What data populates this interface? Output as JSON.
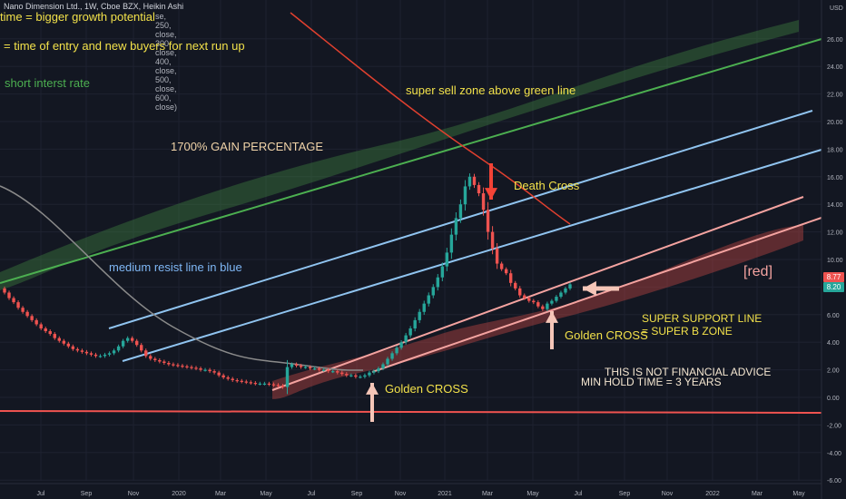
{
  "header": {
    "symbol_info": "Nano Dimension Ltd., 1W, Cboe BZX, Heikin Ashi",
    "study_params": "se, 250, close, 300, close, 400, close, 500, close, 600, close)"
  },
  "annotations": {
    "bigger_growth": "time = bigger growth potential",
    "time_entry": "= time of entry and new buyers for next run up",
    "short_interest": "short interst rate",
    "sell_zone": "super sell zone above green line",
    "gain": "1700% GAIN PERCENTAGE",
    "death_cross": "Death Cross",
    "medium_resist": "medium resist line in blue",
    "red_label": "[red]",
    "super_support_1": "SUPER SUPPORT LINE",
    "super_support_2": "= SUPER B ZONE",
    "golden_cross_1": "Golden CROSS",
    "golden_cross_2": "Golden CROSS",
    "not_advice": "THIS IS NOT FINANCIAL ADVICE",
    "min_hold": "MIN HOLD TIME = 3 YEARS"
  },
  "price_tags": {
    "tag1": "8.77",
    "tag2": "8.20",
    "tag1_color": "#ef5350",
    "tag2_color": "#26a69a"
  },
  "chart_data": {
    "type": "candlestick",
    "currency": "USD",
    "y_ticks": [
      26.0,
      24.0,
      22.0,
      20.0,
      18.0,
      16.0,
      14.0,
      12.0,
      10.0,
      8.0,
      6.0,
      4.0,
      2.0,
      0.0,
      -2.0,
      -4.0,
      -6.0
    ],
    "ylim": [
      -6.0,
      27.5
    ],
    "x_ticks": [
      "Jul",
      "Sep",
      "Nov",
      "2020",
      "Mar",
      "May",
      "Jul",
      "Sep",
      "Nov",
      "2021",
      "Mar",
      "May",
      "Jul",
      "Sep",
      "Nov",
      "2022",
      "Mar",
      "May"
    ],
    "closes": [
      7.6,
      7.2,
      6.9,
      6.5,
      6.2,
      5.9,
      5.6,
      5.3,
      5.0,
      4.8,
      4.6,
      4.3,
      4.1,
      3.9,
      3.7,
      3.5,
      3.4,
      3.3,
      3.2,
      3.1,
      3.0,
      3.0,
      3.1,
      3.2,
      3.4,
      3.7,
      4.1,
      4.3,
      4.1,
      3.8,
      3.4,
      3.0,
      2.8,
      2.7,
      2.6,
      2.5,
      2.4,
      2.35,
      2.3,
      2.25,
      2.2,
      2.15,
      2.1,
      2.0,
      2.0,
      1.9,
      1.8,
      1.6,
      1.45,
      1.35,
      1.25,
      1.2,
      1.15,
      1.1,
      1.05,
      1.0,
      1.0,
      1.0,
      0.95,
      0.9,
      0.85,
      0.75,
      2.2,
      2.4,
      2.3,
      2.2,
      2.2,
      2.1,
      2.1,
      2.0,
      2.0,
      1.9,
      1.9,
      1.8,
      1.7,
      1.6,
      1.6,
      1.5,
      1.5,
      1.6,
      1.8,
      1.9,
      2.1,
      2.4,
      2.8,
      3.2,
      3.6,
      4.0,
      4.5,
      5.0,
      5.6,
      6.2,
      6.8,
      7.4,
      8.0,
      8.7,
      9.5,
      10.5,
      11.8,
      13.0,
      14.0,
      15.3,
      16.0,
      15.4,
      14.8,
      13.6,
      12.0,
      10.8,
      9.7,
      9.3,
      9.0,
      8.3,
      7.9,
      7.4,
      7.2,
      7.0,
      6.9,
      6.6,
      6.4,
      6.8,
      7.0,
      7.3,
      7.6,
      7.9,
      8.2
    ],
    "indicator_grey_ma": "declining moving average from top-left to ~2.0 near Sep 2020",
    "indicator_red_ma": "declining moving average from top to ~12.4 near Jun 2021",
    "lines": {
      "green_resistance": "upward channel top from ~8.0 (Jun 2019) to ~26.2 (May 2022)",
      "blue_resist_upper": "from ~4.6 (Sep 2019) to ~20.8 (May 2022)",
      "blue_resist_lower": "from ~2.4 (Nov 2019) to ~18.2 (Jun 2022)",
      "red_support_upper": "from ~0.5 (May 2020) to ~14.0 (May 2022)",
      "red_support_lower": "from ~2.0 (Sep 2020) to ~12.7 (Jun 2022)",
      "horizontal_red": "~ -1.0"
    }
  }
}
